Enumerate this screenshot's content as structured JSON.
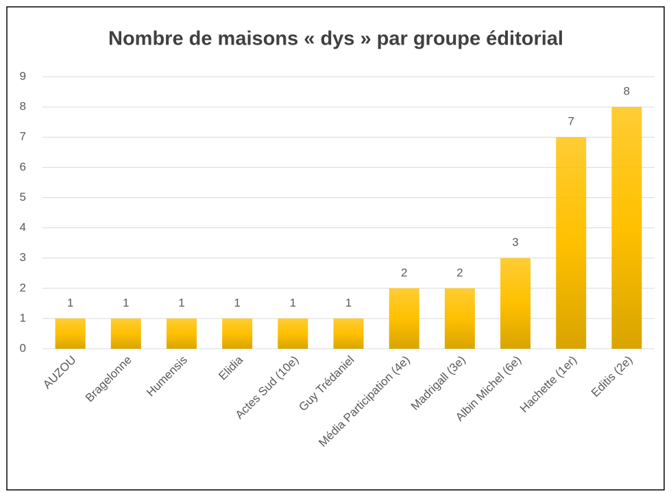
{
  "chart_data": {
    "type": "bar",
    "title": "Nombre de maisons « dys » par groupe éditorial",
    "categories": [
      "AUZOU",
      "Bragelonne",
      "Humensis",
      "Elidia",
      "Actes Sud (10e)",
      "Guy Trédaniel",
      "Média Participation (4e)",
      "Madrigall (3e)",
      "Albin Michel (6e)",
      "Hachette (1er)",
      "Editis (2e)"
    ],
    "values": [
      1,
      1,
      1,
      1,
      1,
      1,
      2,
      2,
      3,
      7,
      8
    ],
    "color": "#ffc000",
    "ylim": [
      0,
      9
    ],
    "yticks": [
      0,
      1,
      2,
      3,
      4,
      5,
      6,
      7,
      8,
      9
    ],
    "grid": true
  }
}
